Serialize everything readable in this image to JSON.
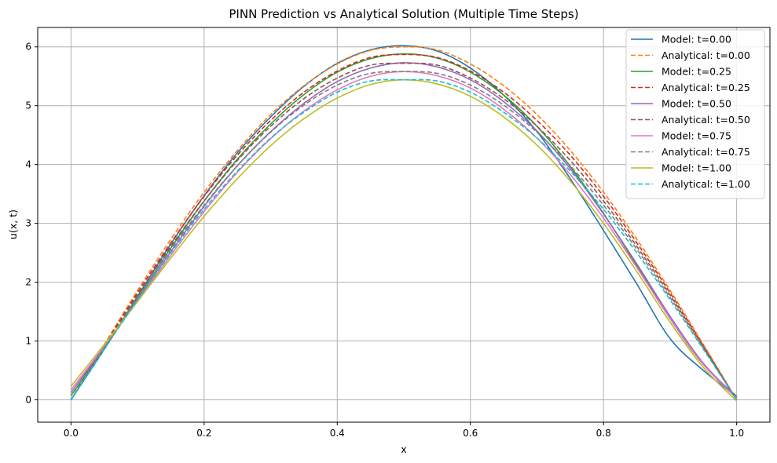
{
  "chart_data": {
    "type": "line",
    "title": "PINN Prediction vs Analytical Solution (Multiple Time Steps)",
    "xlabel": "x",
    "ylabel": "u(x, t)",
    "xlim": [
      -0.05,
      1.05
    ],
    "ylim": [
      -0.38,
      6.33
    ],
    "xticks": [
      0.0,
      0.2,
      0.4,
      0.6,
      0.8,
      1.0
    ],
    "xtick_labels": [
      "0.0",
      "0.2",
      "0.4",
      "0.6",
      "0.8",
      "1.0"
    ],
    "yticks": [
      0,
      1,
      2,
      3,
      4,
      5,
      6
    ],
    "ytick_labels": [
      "0",
      "1",
      "2",
      "3",
      "4",
      "5",
      "6"
    ],
    "grid": true,
    "legend_position": "top-right",
    "x": [
      0.0,
      0.05,
      0.1,
      0.15,
      0.2,
      0.25,
      0.3,
      0.35,
      0.4,
      0.45,
      0.5,
      0.55,
      0.6,
      0.65,
      0.7,
      0.75,
      0.8,
      0.85,
      0.9,
      0.95,
      1.0
    ],
    "series": [
      {
        "name": "Model: t=0.00",
        "color": "#1f77b4",
        "dash": "solid",
        "values": [
          0.0,
          0.86,
          1.76,
          2.65,
          3.47,
          4.2,
          4.81,
          5.33,
          5.72,
          5.95,
          6.02,
          5.93,
          5.64,
          5.18,
          4.56,
          3.76,
          2.88,
          1.97,
          1.04,
          0.5,
          0.05
        ]
      },
      {
        "name": "Analytical: t=0.00",
        "color": "#ff7f0e",
        "dash": "dashed",
        "values": [
          0.0,
          0.94,
          1.86,
          2.73,
          3.53,
          4.24,
          4.85,
          5.34,
          5.71,
          5.94,
          6.0,
          5.95,
          5.71,
          5.34,
          4.85,
          4.24,
          3.53,
          2.73,
          1.86,
          0.94,
          0.0
        ]
      },
      {
        "name": "Model: t=0.25",
        "color": "#2ca02c",
        "dash": "solid",
        "values": [
          0.07,
          0.88,
          1.73,
          2.58,
          3.38,
          4.09,
          4.69,
          5.19,
          5.57,
          5.8,
          5.88,
          5.81,
          5.57,
          5.18,
          4.65,
          3.97,
          3.17,
          2.28,
          1.38,
          0.6,
          0.06
        ]
      },
      {
        "name": "Analytical: t=0.25",
        "color": "#d62728",
        "dash": "dashed",
        "values": [
          0.0,
          0.92,
          1.82,
          2.67,
          3.46,
          4.16,
          4.75,
          5.23,
          5.59,
          5.82,
          5.87,
          5.82,
          5.59,
          5.23,
          4.75,
          4.16,
          3.46,
          2.67,
          1.82,
          0.92,
          0.0
        ]
      },
      {
        "name": "Model: t=0.50",
        "color": "#9467bd",
        "dash": "solid",
        "values": [
          0.12,
          0.9,
          1.71,
          2.52,
          3.29,
          3.98,
          4.56,
          5.04,
          5.41,
          5.64,
          5.73,
          5.66,
          5.44,
          5.07,
          4.57,
          3.93,
          3.16,
          2.31,
          1.42,
          0.62,
          0.04
        ]
      },
      {
        "name": "Analytical: t=0.50",
        "color": "#8c564b",
        "dash": "dashed",
        "values": [
          0.0,
          0.9,
          1.78,
          2.61,
          3.38,
          4.07,
          4.65,
          5.12,
          5.47,
          5.69,
          5.72,
          5.69,
          5.47,
          5.12,
          4.65,
          4.07,
          3.38,
          2.61,
          1.78,
          0.9,
          0.0
        ]
      },
      {
        "name": "Model: t=0.75",
        "color": "#e377c2",
        "dash": "solid",
        "values": [
          0.17,
          0.91,
          1.68,
          2.46,
          3.2,
          3.87,
          4.44,
          4.91,
          5.27,
          5.5,
          5.58,
          5.51,
          5.3,
          4.94,
          4.45,
          3.83,
          3.09,
          2.25,
          1.38,
          0.6,
          0.02
        ]
      },
      {
        "name": "Analytical: t=0.75",
        "color": "#7f7f7f",
        "dash": "dashed",
        "values": [
          0.0,
          0.88,
          1.74,
          2.56,
          3.31,
          3.98,
          4.55,
          5.01,
          5.35,
          5.55,
          5.58,
          5.55,
          5.35,
          5.01,
          4.55,
          3.98,
          3.31,
          2.56,
          1.74,
          0.88,
          0.0
        ]
      },
      {
        "name": "Model: t=1.00",
        "color": "#bcbd22",
        "dash": "solid",
        "values": [
          0.23,
          0.94,
          1.67,
          2.41,
          3.12,
          3.76,
          4.32,
          4.78,
          5.13,
          5.36,
          5.44,
          5.37,
          5.16,
          4.81,
          4.33,
          3.72,
          3.0,
          2.18,
          1.32,
          0.55,
          -0.02
        ]
      },
      {
        "name": "Analytical: t=1.00",
        "color": "#17becf",
        "dash": "dashed",
        "values": [
          0.0,
          0.86,
          1.7,
          2.5,
          3.24,
          3.89,
          4.45,
          4.89,
          5.23,
          5.42,
          5.44,
          5.42,
          5.23,
          4.89,
          4.45,
          3.89,
          3.24,
          2.5,
          1.7,
          0.86,
          0.0
        ]
      }
    ]
  }
}
